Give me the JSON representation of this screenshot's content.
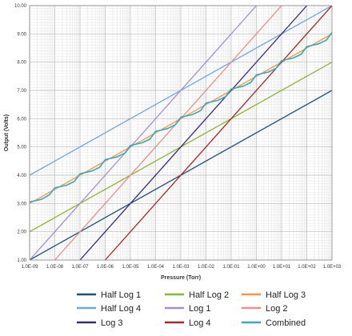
{
  "chart_data": {
    "type": "line",
    "title": "",
    "xlabel": "Pressure (Torr)",
    "ylabel": "Output (Volts)",
    "x_scale": "log",
    "xlim": [
      1e-09,
      1000.0
    ],
    "ylim": [
      1.0,
      10.0
    ],
    "grid": true,
    "legend_position": "bottom",
    "x_tick_labels": [
      "1.0E-09",
      "1.0E-08",
      "1.0E-07",
      "1.0E-06",
      "1.0E-05",
      "1.0E-04",
      "1.0E-03",
      "1.0E-02",
      "1.0E-01",
      "1.0E+00",
      "1.0E+01",
      "1.0E+02",
      "1.0E+03"
    ],
    "y_tick_labels": [
      "1.00",
      "2.00",
      "3.00",
      "4.00",
      "5.00",
      "6.00",
      "7.00",
      "8.00",
      "9.00",
      "10.00"
    ],
    "series": [
      {
        "name": "Half Log 1",
        "color": "#1f4e79",
        "x": [
          1e-09,
          1000.0
        ],
        "y": [
          1.0,
          7.0
        ]
      },
      {
        "name": "Half Log 2",
        "color": "#8db33a",
        "x": [
          1e-09,
          1000.0
        ],
        "y": [
          2.0,
          8.0
        ]
      },
      {
        "name": "Half Log 3",
        "color": "#f79646",
        "x": [
          1e-09,
          1000.0
        ],
        "y": [
          3.0,
          9.0
        ]
      },
      {
        "name": "Half Log 4",
        "color": "#6fa8dc",
        "x": [
          1e-09,
          1000.0
        ],
        "y": [
          4.0,
          10.0
        ]
      },
      {
        "name": "Log 1",
        "color": "#a58fd0",
        "x": [
          1e-09,
          1.0
        ],
        "y": [
          1.0,
          10.0
        ]
      },
      {
        "name": "Log 2",
        "color": "#e8908a",
        "x": [
          1e-08,
          10.0
        ],
        "y": [
          1.0,
          10.0
        ]
      },
      {
        "name": "Log 3",
        "color": "#3b2a7a",
        "x": [
          1e-07,
          100.0
        ],
        "y": [
          1.0,
          10.0
        ]
      },
      {
        "name": "Log 4",
        "color": "#a52a2a",
        "x": [
          1e-06,
          1000.0
        ],
        "y": [
          1.0,
          10.0
        ]
      },
      {
        "name": "Combined",
        "color": "#3aa8b8",
        "x": [
          1e-09,
          3e-09,
          6e-09,
          1e-08,
          3e-08,
          6e-08,
          1e-07,
          3e-07,
          6e-07,
          1e-06,
          3e-06,
          6e-06,
          1e-05,
          3e-05,
          6e-05,
          0.0001,
          0.0003,
          0.0006,
          0.001,
          0.003,
          0.006,
          0.01,
          0.03,
          0.06,
          0.1,
          0.3,
          0.6,
          1.0,
          3.0,
          6.0,
          10.0,
          30.0,
          60.0,
          100.0,
          300.0,
          600.0,
          1000.0
        ],
        "y": [
          3.05,
          3.15,
          3.3,
          3.55,
          3.65,
          3.78,
          4.05,
          4.15,
          4.28,
          4.55,
          4.65,
          4.78,
          5.05,
          5.15,
          5.28,
          5.55,
          5.65,
          5.78,
          6.05,
          6.15,
          6.28,
          6.55,
          6.65,
          6.78,
          7.05,
          7.15,
          7.28,
          7.55,
          7.65,
          7.78,
          8.05,
          8.15,
          8.28,
          8.55,
          8.65,
          8.78,
          9.05
        ]
      }
    ]
  }
}
